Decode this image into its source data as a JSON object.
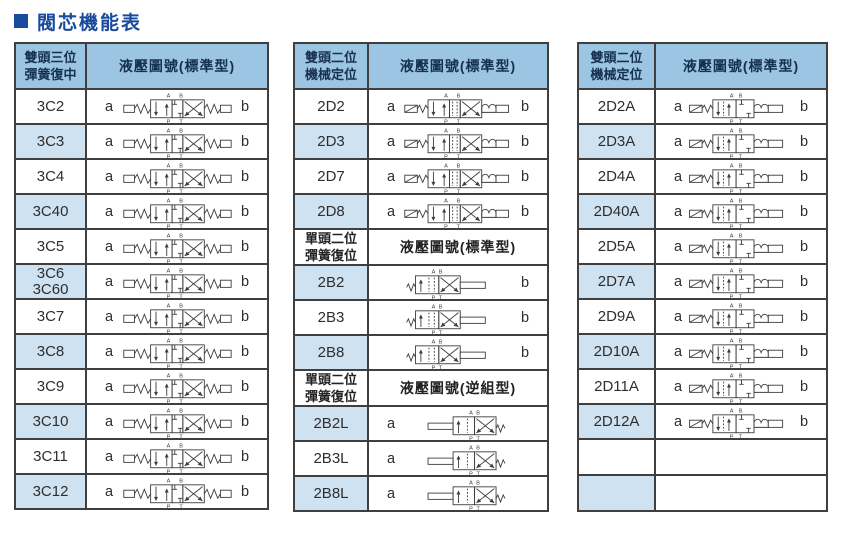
{
  "title": "閥芯機能表",
  "colors": {
    "title_blue": "#1a4a9e",
    "header_bg": "#9cc5e4",
    "header_text": "#16304f",
    "row_shade_bg": "#cfe2f1",
    "border": "#3f3f3f",
    "symbol_stroke": "#3c3c3c"
  },
  "port_labels": {
    "top_left": "A",
    "top_right": "B",
    "bottom_left": "P",
    "bottom_right": "T"
  },
  "tables": [
    {
      "name": "table-double-head-three-position",
      "sections": [
        {
          "type": "header",
          "col1_lines": [
            "雙頭三位",
            "彈簧復中"
          ],
          "col2": "液壓圖號(標準型)"
        },
        {
          "type": "rows",
          "rows": [
            {
              "model_lines": [
                "3C2"
              ],
              "a": "a",
              "b": "b",
              "sym": "3C",
              "shade": false
            },
            {
              "model_lines": [
                "3C3"
              ],
              "a": "a",
              "b": "b",
              "sym": "3C",
              "shade": true
            },
            {
              "model_lines": [
                "3C4"
              ],
              "a": "a",
              "b": "b",
              "sym": "3C",
              "shade": false
            },
            {
              "model_lines": [
                "3C40"
              ],
              "a": "a",
              "b": "b",
              "sym": "3C",
              "shade": true
            },
            {
              "model_lines": [
                "3C5"
              ],
              "a": "a",
              "b": "b",
              "sym": "3C",
              "shade": false
            },
            {
              "model_lines": [
                "3C6",
                "3C60"
              ],
              "a": "a",
              "b": "b",
              "sym": "3C",
              "shade": true
            },
            {
              "model_lines": [
                "3C7"
              ],
              "a": "a",
              "b": "b",
              "sym": "3C",
              "shade": false
            },
            {
              "model_lines": [
                "3C8"
              ],
              "a": "a",
              "b": "b",
              "sym": "3C",
              "shade": true
            },
            {
              "model_lines": [
                "3C9"
              ],
              "a": "a",
              "b": "b",
              "sym": "3C",
              "shade": false
            },
            {
              "model_lines": [
                "3C10"
              ],
              "a": "a",
              "b": "b",
              "sym": "3C",
              "shade": true
            },
            {
              "model_lines": [
                "3C11"
              ],
              "a": "a",
              "b": "b",
              "sym": "3C",
              "shade": false
            },
            {
              "model_lines": [
                "3C12"
              ],
              "a": "a",
              "b": "b",
              "sym": "3C",
              "shade": true
            }
          ]
        }
      ]
    },
    {
      "name": "table-double-head-two-position-and-single-head",
      "sections": [
        {
          "type": "header",
          "col1_lines": [
            "雙頭二位",
            "機械定位"
          ],
          "col2": "液壓圖號(標準型)"
        },
        {
          "type": "rows",
          "rows": [
            {
              "model_lines": [
                "2D2"
              ],
              "a": "a",
              "b": "b",
              "sym": "2D",
              "shade": false
            },
            {
              "model_lines": [
                "2D3"
              ],
              "a": "a",
              "b": "b",
              "sym": "2D",
              "shade": true
            },
            {
              "model_lines": [
                "2D7"
              ],
              "a": "a",
              "b": "b",
              "sym": "2D",
              "shade": false
            },
            {
              "model_lines": [
                "2D8"
              ],
              "a": "a",
              "b": "b",
              "sym": "2D",
              "shade": true
            }
          ]
        },
        {
          "type": "subheader",
          "col1_lines": [
            "單頭二位",
            "彈簧復位"
          ],
          "col2": "液壓圖號(標準型)"
        },
        {
          "type": "rows",
          "rows": [
            {
              "model_lines": [
                "2B2"
              ],
              "a": "",
              "b": "b",
              "sym": "2B",
              "shade": true
            },
            {
              "model_lines": [
                "2B3"
              ],
              "a": "",
              "b": "b",
              "sym": "2B",
              "shade": false
            },
            {
              "model_lines": [
                "2B8"
              ],
              "a": "",
              "b": "b",
              "sym": "2B",
              "shade": true
            }
          ]
        },
        {
          "type": "subheader",
          "col1_lines": [
            "單頭二位",
            "彈簧復位"
          ],
          "col2": "液壓圖號(逆組型)"
        },
        {
          "type": "rows",
          "rows": [
            {
              "model_lines": [
                "2B2L"
              ],
              "a": "a",
              "b": "",
              "sym": "2BL",
              "shade": true
            },
            {
              "model_lines": [
                "2B3L"
              ],
              "a": "a",
              "b": "",
              "sym": "2BL",
              "shade": false
            },
            {
              "model_lines": [
                "2B8L"
              ],
              "a": "a",
              "b": "",
              "sym": "2BL",
              "shade": true
            }
          ]
        }
      ]
    },
    {
      "name": "table-double-head-two-position-a-series",
      "sections": [
        {
          "type": "header",
          "col1_lines": [
            "雙頭二位",
            "機械定位"
          ],
          "col2": "液壓圖號(標準型)"
        },
        {
          "type": "rows",
          "rows": [
            {
              "model_lines": [
                "2D2A"
              ],
              "a": "a",
              "b": "b",
              "sym": "2DA",
              "shade": false
            },
            {
              "model_lines": [
                "2D3A"
              ],
              "a": "a",
              "b": "b",
              "sym": "2DA",
              "shade": true
            },
            {
              "model_lines": [
                "2D4A"
              ],
              "a": "a",
              "b": "b",
              "sym": "2DA",
              "shade": false
            },
            {
              "model_lines": [
                "2D40A"
              ],
              "a": "a",
              "b": "b",
              "sym": "2DA",
              "shade": true
            },
            {
              "model_lines": [
                "2D5A"
              ],
              "a": "a",
              "b": "b",
              "sym": "2DA",
              "shade": false
            },
            {
              "model_lines": [
                "2D7A"
              ],
              "a": "a",
              "b": "b",
              "sym": "2DA",
              "shade": true
            },
            {
              "model_lines": [
                "2D9A"
              ],
              "a": "a",
              "b": "b",
              "sym": "2DA",
              "shade": false
            },
            {
              "model_lines": [
                "2D10A"
              ],
              "a": "a",
              "b": "b",
              "sym": "2DA",
              "shade": true
            },
            {
              "model_lines": [
                "2D11A"
              ],
              "a": "a",
              "b": "b",
              "sym": "2DA",
              "shade": false
            },
            {
              "model_lines": [
                "2D12A"
              ],
              "a": "a",
              "b": "b",
              "sym": "2DA",
              "shade": true
            },
            {
              "model_lines": [],
              "a": "",
              "b": "",
              "sym": "none",
              "shade": false,
              "h": 34
            },
            {
              "model_lines": [],
              "a": "",
              "b": "",
              "sym": "none",
              "shade": true,
              "h": 34
            }
          ]
        }
      ]
    }
  ]
}
